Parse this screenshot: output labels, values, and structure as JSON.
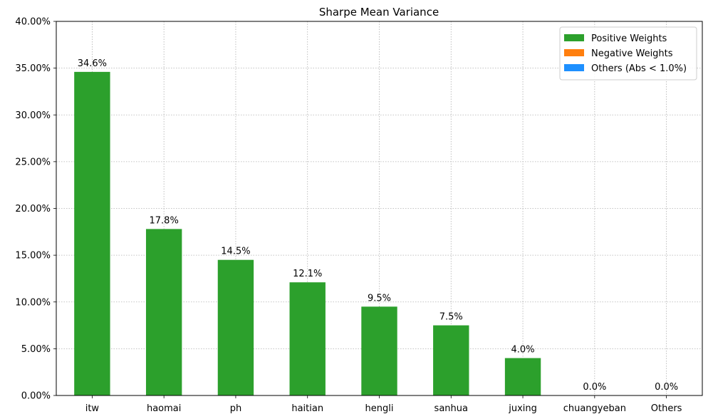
{
  "chart_data": {
    "type": "bar",
    "title": "Sharpe Mean Variance",
    "xlabel": "",
    "ylabel": "",
    "categories": [
      "itw",
      "haomai",
      "ph",
      "haitian",
      "hengli",
      "sanhua",
      "juxing",
      "chuangyeban",
      "Others"
    ],
    "values": [
      34.6,
      17.8,
      14.5,
      12.1,
      9.5,
      7.5,
      4.0,
      0.0,
      0.0
    ],
    "data_labels": [
      "34.6%",
      "17.8%",
      "14.5%",
      "12.1%",
      "9.5%",
      "7.5%",
      "4.0%",
      "0.0%",
      "0.0%"
    ],
    "ylim": [
      0,
      40
    ],
    "yticks": [
      0,
      5,
      10,
      15,
      20,
      25,
      30,
      35,
      40
    ],
    "ytick_labels": [
      "0.00%",
      "5.00%",
      "10.00%",
      "15.00%",
      "20.00%",
      "25.00%",
      "30.00%",
      "35.00%",
      "40.00%"
    ],
    "grid": true,
    "legend_position": "top-right",
    "legend": [
      {
        "name": "Positive Weights",
        "color": "#2ca02c"
      },
      {
        "name": "Negative Weights",
        "color": "#ff7f0e"
      },
      {
        "name": "Others (Abs < 1.0%)",
        "color": "#1e90ff"
      }
    ],
    "bar_color": "#2ca02c"
  }
}
